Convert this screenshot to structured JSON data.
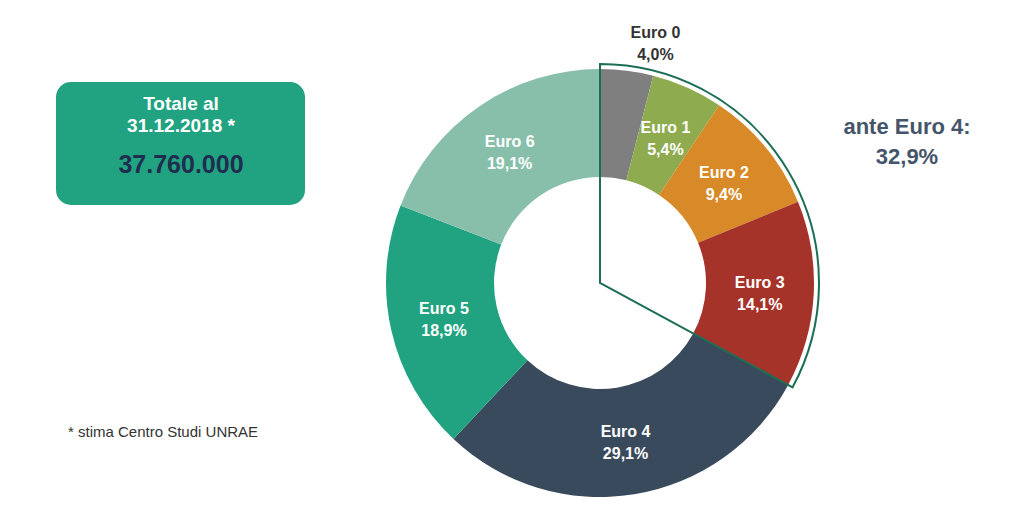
{
  "chart_data": {
    "type": "donut",
    "categories": [
      "Euro 0",
      "Euro 1",
      "Euro 2",
      "Euro 3",
      "Euro 4",
      "Euro 5",
      "Euro 6"
    ],
    "values": [
      4.0,
      5.4,
      9.4,
      14.1,
      29.1,
      18.9,
      19.1
    ],
    "value_labels": [
      "4,0%",
      "5,4%",
      "9,4%",
      "14,1%",
      "29,1%",
      "18,9%",
      "19,1%"
    ],
    "colors": [
      "#7f7f7f",
      "#8eab50",
      "#d78a27",
      "#a6332a",
      "#3a4a5d",
      "#21a382",
      "#88bfaa"
    ],
    "data_labels": true,
    "total_box": {
      "lines": [
        "Totale al",
        "31.12.2018 *"
      ],
      "value": 37760000,
      "value_label": "37.760.000"
    },
    "group": {
      "label": "ante Euro 4:",
      "value": 32.9,
      "value_label": "32,9%"
    },
    "footnote": "* stima Centro Studi UNRAE"
  }
}
